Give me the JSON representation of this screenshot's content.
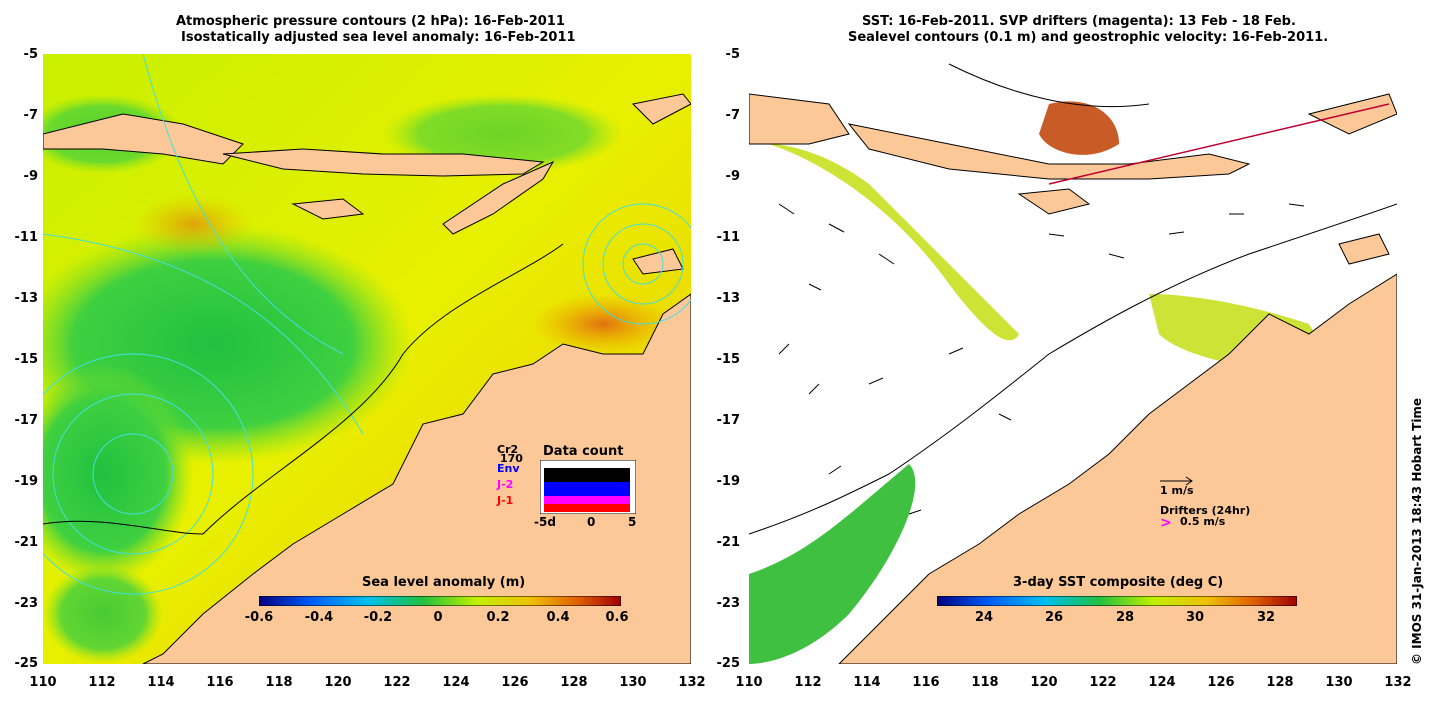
{
  "left_panel": {
    "title_line1": "Atmospheric pressure contours (2 hPa): 16-Feb-2011",
    "title_line2": "Isostatically adjusted sea level anomaly: 16-Feb-2011",
    "colorbar": {
      "title": "Sea level anomaly (m)",
      "ticks": [
        "-0.6",
        "-0.4",
        "-0.2",
        "0",
        "0.2",
        "0.4",
        "0.6"
      ]
    },
    "data_count": {
      "title": "Data count",
      "sources": [
        {
          "label": "Cr2",
          "color": "#000000"
        },
        {
          "label": "170",
          "color": "#000000"
        },
        {
          "label": "Env",
          "color": "#0000ff"
        },
        {
          "label": "J-2",
          "color": "#ff00ff"
        },
        {
          "label": "J-1",
          "color": "#ff0000"
        }
      ],
      "axis_ticks": [
        "-5d",
        "0",
        "5"
      ]
    }
  },
  "right_panel": {
    "title_line1": "SST: 16-Feb-2011. SVP drifters (magenta): 13 Feb - 18 Feb.",
    "title_line2": "Sealevel contours (0.1 m) and geostrophic velocity: 16-Feb-2011.",
    "colorbar": {
      "title": "3-day SST composite (deg C)",
      "ticks": [
        "24",
        "26",
        "28",
        "30",
        "32"
      ]
    },
    "legend": {
      "velocity": "1 m/s",
      "drifters_title": "Drifters (24hr)",
      "drifters_speed": "0.5 m/s"
    }
  },
  "axes": {
    "y_ticks": [
      "-5",
      "-7",
      "-9",
      "-11",
      "-13",
      "-15",
      "-17",
      "-19",
      "-21",
      "-23",
      "-25"
    ],
    "x_ticks": [
      "110",
      "112",
      "114",
      "116",
      "118",
      "120",
      "122",
      "124",
      "126",
      "128",
      "130",
      "132"
    ]
  },
  "copyright": "© IMOS 31-Jan-2013 18:43 Hobart Time",
  "colors": {
    "land": "#fcc898",
    "ocean_mid": "#b8f000",
    "contour": "#40e0e0",
    "drifter": "#ff00ff"
  }
}
